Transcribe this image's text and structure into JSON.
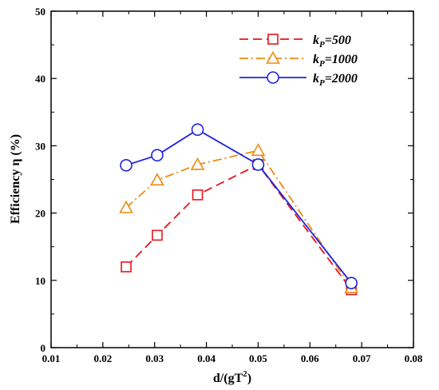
{
  "chart_data": {
    "type": "line",
    "xlabel_main": "d/(gT",
    "xlabel_sup": "2",
    "xlabel_tail": ")",
    "ylabel": "Efficiency η (%)",
    "xlim": [
      0.01,
      0.08
    ],
    "ylim": [
      0,
      50
    ],
    "x_ticks": [
      "0.01",
      "0.02",
      "0.03",
      "0.04",
      "0.05",
      "0.06",
      "0.07",
      "0.08"
    ],
    "x_tick_values": [
      0.01,
      0.02,
      0.03,
      0.04,
      0.05,
      0.06,
      0.07,
      0.08
    ],
    "y_ticks": [
      "0",
      "10",
      "20",
      "30",
      "40",
      "50"
    ],
    "y_tick_values": [
      0,
      10,
      20,
      30,
      40,
      50
    ],
    "grid": false,
    "legend_position": "top-right",
    "series": [
      {
        "name_prefix": "k",
        "name_sub": "P",
        "name_suffix": "=500",
        "color": "#e8141c",
        "line_style": "dashed",
        "marker": "square",
        "x": [
          0.0245,
          0.0305,
          0.0383,
          0.05,
          0.068
        ],
        "y": [
          12.0,
          16.7,
          22.7,
          27.2,
          8.6
        ]
      },
      {
        "name_prefix": "k",
        "name_sub": "P",
        "name_suffix": "=1000",
        "color": "#ee8a12",
        "line_style": "dashdot",
        "marker": "triangle",
        "x": [
          0.0245,
          0.0305,
          0.0383,
          0.05,
          0.068
        ],
        "y": [
          20.8,
          24.9,
          27.2,
          29.3,
          8.9
        ]
      },
      {
        "name_prefix": "k",
        "name_sub": "P",
        "name_suffix": "=2000",
        "color": "#1f22e0",
        "line_style": "solid",
        "marker": "circle",
        "x": [
          0.0245,
          0.0305,
          0.0383,
          0.05,
          0.068
        ],
        "y": [
          27.1,
          28.6,
          32.4,
          27.2,
          9.6
        ]
      }
    ]
  }
}
